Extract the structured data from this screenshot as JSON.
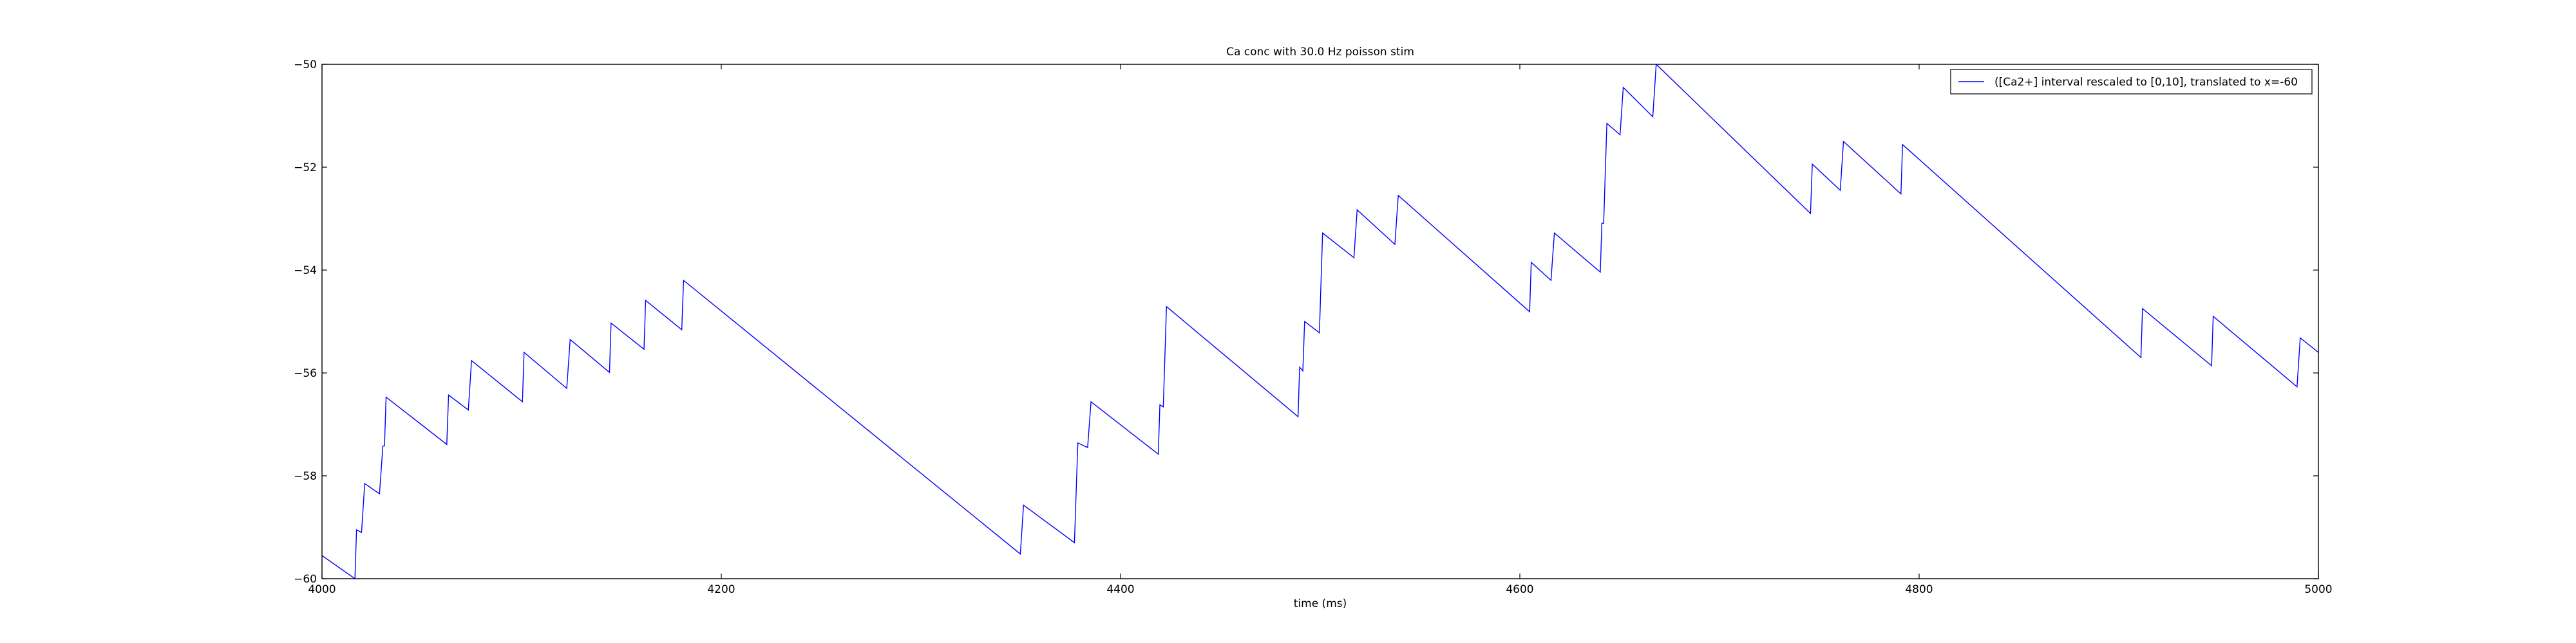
{
  "chart_data": {
    "type": "line",
    "title": "Ca conc with 30.0 Hz poisson stim",
    "xlabel": "time (ms)",
    "x": [
      4000,
      4016.5,
      4017.3,
      4019.8,
      4021.4,
      4028.8,
      4030.5,
      4031.3,
      4032.1,
      4062.5,
      4063.4,
      4073.3,
      4074.9,
      4100.4,
      4101.2,
      4122.6,
      4124.3,
      4144.0,
      4144.8,
      4161.3,
      4162.1,
      4180.2,
      4181.1,
      4349.8,
      4351.4,
      4376.9,
      4378.6,
      4383.5,
      4385.2,
      4418.9,
      4419.7,
      4421.4,
      4423.0,
      4488.9,
      4489.7,
      4491.3,
      4492.2,
      4499.6,
      4501.2,
      4516.9,
      4518.5,
      4537.4,
      4539.1,
      4604.9,
      4605.7,
      4615.6,
      4617.3,
      4640.3,
      4641.1,
      4642.0,
      4642.8,
      4643.6,
      4650.2,
      4651.8,
      4666.6,
      4668.3,
      4745.6,
      4746.5,
      4760.5,
      4762.1,
      4790.9,
      4791.7,
      4911.1,
      4911.9,
      4946.5,
      4947.3,
      4989.3,
      4990.9,
      5000
    ],
    "series": [
      {
        "name": "([Ca2+] interval rescaled to [0,10], translated to x=-60",
        "color": "#0000ff",
        "values": [
          -59.55,
          -60.0,
          -59.05,
          -59.1,
          -58.15,
          -58.35,
          -57.42,
          -57.42,
          -56.47,
          -57.39,
          -56.43,
          -56.72,
          -55.76,
          -56.56,
          -55.6,
          -56.3,
          -55.35,
          -55.99,
          -55.03,
          -55.54,
          -54.59,
          -55.16,
          -54.2,
          -59.52,
          -58.57,
          -59.3,
          -57.36,
          -57.45,
          -56.56,
          -57.58,
          -56.62,
          -56.66,
          -54.71,
          -56.85,
          -55.89,
          -55.96,
          -55.0,
          -55.22,
          -53.28,
          -53.76,
          -52.83,
          -53.5,
          -52.55,
          -54.81,
          -53.85,
          -54.2,
          -53.28,
          -54.04,
          -53.09,
          -53.09,
          -52.1,
          -51.15,
          -51.37,
          -50.45,
          -51.02,
          -50.0,
          -52.9,
          -51.94,
          -52.45,
          -51.5,
          -52.52,
          -51.56,
          -55.7,
          -54.75,
          -55.86,
          -54.9,
          -56.27,
          -55.32,
          -55.6
        ]
      }
    ],
    "xlim": [
      4000,
      5000
    ],
    "ylim": [
      -60,
      -50
    ],
    "xticks": [
      4000,
      4200,
      4400,
      4600,
      4800,
      5000
    ],
    "yticks": [
      {
        "value": -60,
        "label": "−60"
      },
      {
        "value": -58,
        "label": "−58"
      },
      {
        "value": -56,
        "label": "−56"
      },
      {
        "value": -54,
        "label": "−54"
      },
      {
        "value": -52,
        "label": "−52"
      },
      {
        "value": -50,
        "label": "−50"
      }
    ],
    "legend": "upper right"
  }
}
